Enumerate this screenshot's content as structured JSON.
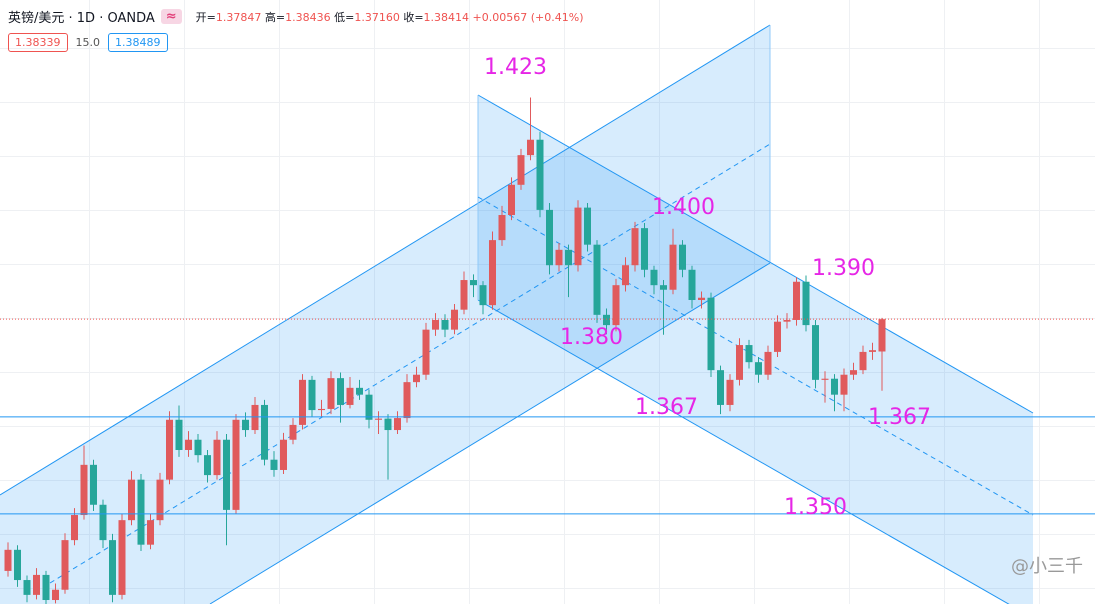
{
  "header": {
    "badge": "≈",
    "ohlc": [
      {
        "label": "开=",
        "value": "1.37847"
      },
      {
        "label": "高=",
        "value": "1.38436"
      },
      {
        "label": "低=",
        "value": "1.37160"
      },
      {
        "label": "收=",
        "value": "1.38414"
      }
    ],
    "change": "+0.00567 (+0.41%)",
    "bid": "1.38339",
    "spread": "15.0",
    "ask": "1.38489"
  },
  "watermark": "@小三千",
  "chart_data": {
    "type": "candlestick",
    "title": "英镑/美元 · 1D · OANDA",
    "ylim": [
      1.3342,
      1.4401
    ],
    "up_color": "#e05a5c",
    "down_color": "#26a69a",
    "series": {
      "open": [
        1.34,
        1.3437,
        1.3384,
        1.3358,
        1.3393,
        1.3349,
        1.3367,
        1.3454,
        1.3498,
        1.3586,
        1.3516,
        1.3454,
        1.3358,
        1.3489,
        1.356,
        1.3446,
        1.3489,
        1.356,
        1.3665,
        1.3612,
        1.363,
        1.3603,
        1.3568,
        1.363,
        1.3507,
        1.3665,
        1.3647,
        1.3691,
        1.3595,
        1.3577,
        1.363,
        1.3656,
        1.3735,
        1.3682,
        1.3684,
        1.3738,
        1.3691,
        1.3721,
        1.3709,
        1.3665,
        1.3667,
        1.3647,
        1.3668,
        1.3731,
        1.3744,
        1.3823,
        1.384,
        1.3823,
        1.3858,
        1.391,
        1.3901,
        1.3866,
        1.398,
        1.4024,
        1.4077,
        1.4129,
        1.4156,
        1.4033,
        1.3936,
        1.3963,
        1.3936,
        1.4037,
        1.3972,
        1.3849,
        1.3831,
        1.3901,
        1.3936,
        1.4001,
        1.3928,
        1.3901,
        1.3893,
        1.3972,
        1.3928,
        1.3875,
        1.3879,
        1.3752,
        1.3691,
        1.3735,
        1.3796,
        1.3766,
        1.3744,
        1.3784,
        1.3837,
        1.384,
        1.3907,
        1.3831,
        1.3735,
        1.3737,
        1.3709,
        1.3744,
        1.3752,
        1.3784,
        1.37847
      ],
      "high": [
        1.345,
        1.3445,
        1.3392,
        1.3405,
        1.34,
        1.3378,
        1.3466,
        1.351,
        1.362,
        1.3595,
        1.3525,
        1.3465,
        1.35,
        1.3575,
        1.357,
        1.35,
        1.3572,
        1.368,
        1.369,
        1.3645,
        1.364,
        1.3612,
        1.3645,
        1.364,
        1.3675,
        1.3678,
        1.3705,
        1.37,
        1.361,
        1.3642,
        1.3668,
        1.3745,
        1.3742,
        1.37,
        1.375,
        1.3748,
        1.374,
        1.3735,
        1.3718,
        1.368,
        1.3675,
        1.368,
        1.3745,
        1.3758,
        1.3835,
        1.3852,
        1.385,
        1.3868,
        1.3925,
        1.392,
        1.3908,
        1.3995,
        1.404,
        1.409,
        1.414,
        1.423,
        1.417,
        1.4045,
        1.3975,
        1.3972,
        1.405,
        1.4045,
        1.398,
        1.386,
        1.3912,
        1.395,
        1.4012,
        1.401,
        1.3935,
        1.391,
        1.4,
        1.398,
        1.3935,
        1.389,
        1.3888,
        1.376,
        1.3745,
        1.3808,
        1.3805,
        1.3775,
        1.3795,
        1.3848,
        1.3852,
        1.3915,
        1.3918,
        1.384,
        1.375,
        1.3745,
        1.3755,
        1.3765,
        1.3795,
        1.38,
        1.38436
      ],
      "low": [
        1.339,
        1.3372,
        1.3345,
        1.335,
        1.3342,
        1.3343,
        1.336,
        1.3445,
        1.349,
        1.3505,
        1.344,
        1.3345,
        1.335,
        1.348,
        1.3435,
        1.3438,
        1.348,
        1.3552,
        1.36,
        1.36,
        1.359,
        1.3555,
        1.356,
        1.3445,
        1.35,
        1.3635,
        1.364,
        1.3585,
        1.3565,
        1.357,
        1.3622,
        1.3648,
        1.367,
        1.367,
        1.3675,
        1.366,
        1.3685,
        1.37,
        1.365,
        1.364,
        1.356,
        1.364,
        1.366,
        1.3722,
        1.3735,
        1.3812,
        1.381,
        1.3815,
        1.385,
        1.388,
        1.385,
        1.3858,
        1.397,
        1.4015,
        1.4068,
        1.412,
        1.402,
        1.392,
        1.3925,
        1.388,
        1.3925,
        1.396,
        1.3835,
        1.3815,
        1.382,
        1.389,
        1.3925,
        1.3915,
        1.3885,
        1.3814,
        1.3885,
        1.3915,
        1.386,
        1.386,
        1.374,
        1.3675,
        1.368,
        1.3725,
        1.3755,
        1.373,
        1.3735,
        1.3775,
        1.3825,
        1.383,
        1.382,
        1.372,
        1.3695,
        1.368,
        1.368,
        1.3735,
        1.3745,
        1.377,
        1.3716
      ],
      "close": [
        1.3437,
        1.3384,
        1.3358,
        1.3393,
        1.3349,
        1.3367,
        1.3454,
        1.3498,
        1.3586,
        1.3516,
        1.3454,
        1.3358,
        1.3489,
        1.356,
        1.3446,
        1.3489,
        1.356,
        1.3665,
        1.3612,
        1.363,
        1.3603,
        1.3568,
        1.363,
        1.3507,
        1.3665,
        1.3647,
        1.3691,
        1.3595,
        1.3577,
        1.363,
        1.3656,
        1.3735,
        1.3682,
        1.3684,
        1.3738,
        1.3691,
        1.3721,
        1.3709,
        1.3665,
        1.3667,
        1.3647,
        1.3668,
        1.3731,
        1.3744,
        1.3823,
        1.384,
        1.3823,
        1.3858,
        1.391,
        1.3901,
        1.3866,
        1.398,
        1.4024,
        1.4077,
        1.4129,
        1.4156,
        1.4033,
        1.3936,
        1.3963,
        1.3936,
        1.4037,
        1.3972,
        1.3849,
        1.3831,
        1.3901,
        1.3936,
        1.4001,
        1.3928,
        1.3901,
        1.3893,
        1.3972,
        1.3928,
        1.3875,
        1.3879,
        1.3752,
        1.3691,
        1.3735,
        1.3796,
        1.3766,
        1.3744,
        1.3784,
        1.3837,
        1.384,
        1.3907,
        1.3831,
        1.3735,
        1.3737,
        1.3709,
        1.3744,
        1.3752,
        1.3784,
        1.3787,
        1.38414
      ]
    },
    "hlines": [
      1.367,
      1.35
    ],
    "hline_color": "#2196f3",
    "last_price_color": "#ef5350",
    "annotations": [
      "1.423",
      "1.400",
      "1.390",
      "1.380",
      "1.367",
      "1.367",
      "1.350"
    ],
    "annotation_color": "#e626e6"
  }
}
